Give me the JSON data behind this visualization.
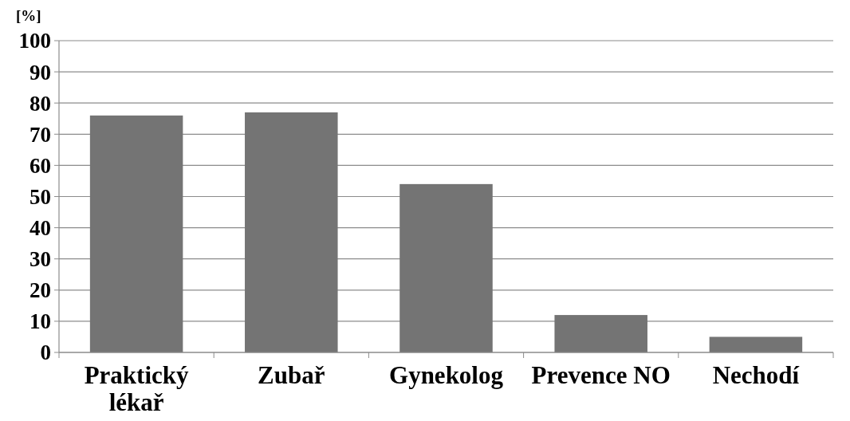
{
  "chart_data": {
    "type": "bar",
    "ylabel": "[%]",
    "categories": [
      "Praktický lékař",
      "Zubař",
      "Gynekolog",
      "Prevence NO",
      "Nechodí"
    ],
    "values": [
      76,
      77,
      54,
      12,
      5
    ],
    "color": "#747474",
    "ylim": [
      0,
      100
    ],
    "yticks": [
      0,
      10,
      20,
      30,
      40,
      50,
      60,
      70,
      80,
      90,
      100
    ],
    "grid": "y"
  }
}
